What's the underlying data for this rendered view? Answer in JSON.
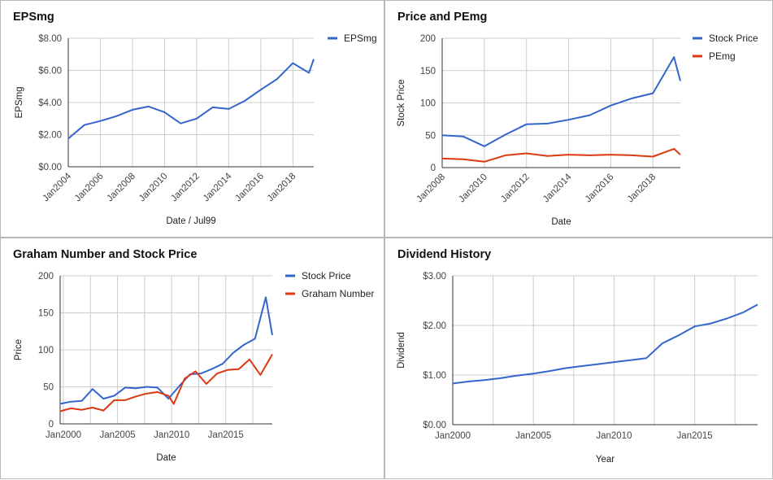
{
  "colors": {
    "blue": "#3366cc",
    "red": "#dc3912"
  },
  "chart_data": [
    {
      "type": "line",
      "title": "EPSmg",
      "xlabel": "Date / Jul99",
      "ylabel": "EPSmg",
      "y_ticks": [
        "$0.00",
        "$2.00",
        "$4.00",
        "$6.00",
        "$8.00"
      ],
      "ylim": [
        0,
        8
      ],
      "x_ticks": [
        "Jan2004",
        "Jan2006",
        "Jan2008",
        "Jan2010",
        "Jan2012",
        "Jan2014",
        "Jan2016",
        "Jan2018"
      ],
      "xlim": [
        2004,
        2019.3
      ],
      "legend_position": "right",
      "series": [
        {
          "name": "EPSmg",
          "color": "#3366cc",
          "points": [
            [
              2004,
              1.75
            ],
            [
              2005,
              2.6
            ],
            [
              2006,
              2.85
            ],
            [
              2007,
              3.15
            ],
            [
              2008,
              3.55
            ],
            [
              2009,
              3.75
            ],
            [
              2010,
              3.4
            ],
            [
              2011,
              2.7
            ],
            [
              2012,
              3.0
            ],
            [
              2013,
              3.7
            ],
            [
              2014,
              3.6
            ],
            [
              2015,
              4.1
            ],
            [
              2016,
              4.8
            ],
            [
              2017,
              5.45
            ],
            [
              2018,
              6.45
            ],
            [
              2019,
              5.85
            ],
            [
              2019.3,
              6.7
            ]
          ]
        }
      ]
    },
    {
      "type": "line",
      "title": "Price and PEmg",
      "xlabel": "Date",
      "ylabel": "Stock Price",
      "y_ticks": [
        "0",
        "50",
        "100",
        "150",
        "200"
      ],
      "ylim": [
        0,
        200
      ],
      "x_ticks": [
        "Jan2008",
        "Jan2010",
        "Jan2012",
        "Jan2014",
        "Jan2016",
        "Jan2018"
      ],
      "xlim": [
        2008,
        2019.3
      ],
      "legend_position": "right",
      "series": [
        {
          "name": "Stock Price",
          "color": "#3366cc",
          "points": [
            [
              2008,
              50
            ],
            [
              2009,
              48
            ],
            [
              2010,
              33
            ],
            [
              2011,
              51
            ],
            [
              2012,
              67
            ],
            [
              2013,
              68
            ],
            [
              2014,
              74
            ],
            [
              2015,
              81
            ],
            [
              2016,
              96
            ],
            [
              2017,
              107
            ],
            [
              2018,
              115
            ],
            [
              2019,
              171
            ],
            [
              2019.3,
              134
            ]
          ]
        },
        {
          "name": "PEmg",
          "color": "#dc3912",
          "points": [
            [
              2008,
              14
            ],
            [
              2009,
              13
            ],
            [
              2010,
              9
            ],
            [
              2011,
              19
            ],
            [
              2012,
              22
            ],
            [
              2013,
              18
            ],
            [
              2014,
              20
            ],
            [
              2015,
              19
            ],
            [
              2016,
              20
            ],
            [
              2017,
              19
            ],
            [
              2018,
              17
            ],
            [
              2019,
              29
            ],
            [
              2019.3,
              20
            ]
          ]
        }
      ]
    },
    {
      "type": "line",
      "title": "Graham Number and Stock Price",
      "xlabel": "Date",
      "ylabel": "Price",
      "y_ticks": [
        "0",
        "50",
        "100",
        "150",
        "200"
      ],
      "ylim": [
        0,
        200
      ],
      "x_ticks": [
        "Jan2000",
        "Jan2005",
        "Jan2010",
        "Jan2015"
      ],
      "xlim": [
        1999.7,
        2019.3
      ],
      "legend_position": "right",
      "series": [
        {
          "name": "Stock Price",
          "color": "#3366cc",
          "points": [
            [
              1999.7,
              27
            ],
            [
              2000.7,
              30
            ],
            [
              2001.7,
              31
            ],
            [
              2002.7,
              47
            ],
            [
              2003.7,
              34
            ],
            [
              2004.7,
              38
            ],
            [
              2005.7,
              49
            ],
            [
              2006.7,
              48
            ],
            [
              2007.7,
              50
            ],
            [
              2008.7,
              49
            ],
            [
              2009.7,
              34
            ],
            [
              2010.7,
              51
            ],
            [
              2011.7,
              67
            ],
            [
              2012.7,
              68
            ],
            [
              2013.7,
              74
            ],
            [
              2014.7,
              81
            ],
            [
              2015.7,
              96
            ],
            [
              2016.7,
              107
            ],
            [
              2017.7,
              115
            ],
            [
              2018.7,
              171
            ],
            [
              2019.3,
              120
            ]
          ]
        },
        {
          "name": "Graham Number",
          "color": "#dc3912",
          "points": [
            [
              1999.7,
              17
            ],
            [
              2000.7,
              21
            ],
            [
              2001.7,
              19
            ],
            [
              2002.7,
              22
            ],
            [
              2003.7,
              18
            ],
            [
              2004.7,
              32
            ],
            [
              2005.7,
              32
            ],
            [
              2006.7,
              37
            ],
            [
              2007.7,
              41
            ],
            [
              2008.7,
              43
            ],
            [
              2009.7,
              38
            ],
            [
              2010.2,
              27
            ],
            [
              2011.2,
              61
            ],
            [
              2012.2,
              71
            ],
            [
              2013.2,
              54
            ],
            [
              2014.2,
              68
            ],
            [
              2015.2,
              73
            ],
            [
              2016.2,
              74
            ],
            [
              2017.2,
              87
            ],
            [
              2018.2,
              66
            ],
            [
              2019.3,
              94
            ]
          ]
        }
      ]
    },
    {
      "type": "line",
      "title": "Dividend History",
      "xlabel": "Year",
      "ylabel": "Dividend",
      "y_ticks": [
        "$0.00",
        "$1.00",
        "$2.00",
        "$3.00"
      ],
      "ylim": [
        0,
        3
      ],
      "x_ticks": [
        "Jan2000",
        "Jan2005",
        "Jan2010",
        "Jan2015"
      ],
      "xlim": [
        2000,
        2018.9
      ],
      "series": [
        {
          "name": "Dividend",
          "color": "#3366cc",
          "points": [
            [
              2000,
              0.83
            ],
            [
              2001,
              0.87
            ],
            [
              2002,
              0.9
            ],
            [
              2003,
              0.94
            ],
            [
              2004,
              0.99
            ],
            [
              2005,
              1.03
            ],
            [
              2006,
              1.08
            ],
            [
              2007,
              1.14
            ],
            [
              2008,
              1.18
            ],
            [
              2009,
              1.22
            ],
            [
              2010,
              1.26
            ],
            [
              2011,
              1.3
            ],
            [
              2012,
              1.34
            ],
            [
              2013,
              1.64
            ],
            [
              2014,
              1.8
            ],
            [
              2015,
              1.98
            ],
            [
              2016,
              2.04
            ],
            [
              2017,
              2.14
            ],
            [
              2018,
              2.26
            ],
            [
              2018.9,
              2.42
            ]
          ]
        }
      ]
    }
  ]
}
